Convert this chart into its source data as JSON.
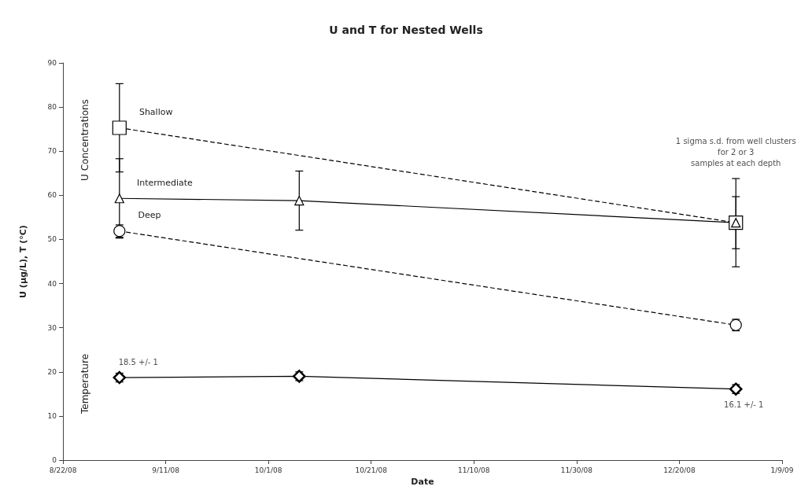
{
  "chart_data": {
    "type": "line",
    "title": "U and T for Nested Wells",
    "xlabel": "Date",
    "ylabel": "U (µg/L), T (°C)",
    "xlim": [
      "2008-08-22",
      "2009-01-09"
    ],
    "xticks": [
      {
        "value": "2008-08-22",
        "label": "8/22/08"
      },
      {
        "value": "2008-09-11",
        "label": "9/11/08"
      },
      {
        "value": "2008-10-01",
        "label": "10/1/08"
      },
      {
        "value": "2008-10-21",
        "label": "10/21/08"
      },
      {
        "value": "2008-11-10",
        "label": "11/10/08"
      },
      {
        "value": "2008-11-30",
        "label": "11/30/08"
      },
      {
        "value": "2008-12-20",
        "label": "12/20/08"
      },
      {
        "value": "2009-01-09",
        "label": "1/9/09"
      }
    ],
    "ylim": [
      0,
      90
    ],
    "yticks": [
      0,
      10,
      20,
      30,
      40,
      50,
      60,
      70,
      80,
      90
    ],
    "grid": false,
    "legend": false,
    "series": [
      {
        "name": "Shallow",
        "color": "#000000",
        "marker": "square",
        "line_style": "dashed",
        "x": [
          "2008-09-02",
          "2008-12-31"
        ],
        "values": [
          75.3,
          53.8
        ],
        "errors": [
          10,
          10
        ]
      },
      {
        "name": "Intermediate",
        "color": "#000000",
        "marker": "triangle",
        "line_style": "solid",
        "x": [
          "2008-09-02",
          "2008-10-07",
          "2008-12-31"
        ],
        "values": [
          59.3,
          58.8,
          53.8
        ],
        "errors": [
          9,
          6.7,
          5.9
        ]
      },
      {
        "name": "Deep",
        "color": "#000000",
        "marker": "circle",
        "line_style": "dashed",
        "x": [
          "2008-09-02",
          "2008-12-31"
        ],
        "values": [
          51.9,
          30.6
        ],
        "errors": [
          1.4,
          1.3
        ]
      },
      {
        "color": "#000000",
        "marker": "diamond",
        "line_style": "solid",
        "x": [
          "2008-09-02",
          "2008-10-07",
          "2008-12-31"
        ],
        "values": [
          18.7,
          19.0,
          16.1
        ],
        "errors": [
          1,
          1,
          1
        ]
      }
    ],
    "annotations": [
      "U Concentrations",
      "Temperature",
      {
        "text": "18.5 +/- 1",
        "x": "2008-09-02",
        "y": 18.7
      },
      {
        "text": "16.1 +/- 1",
        "x": "2008-12-31",
        "y": 16.1
      },
      {
        "text": "1 sigma s.d. from well clusters\nfor 2 or 3\nsamples at each depth",
        "x": "2008-12-31",
        "y": 63.8
      }
    ]
  }
}
